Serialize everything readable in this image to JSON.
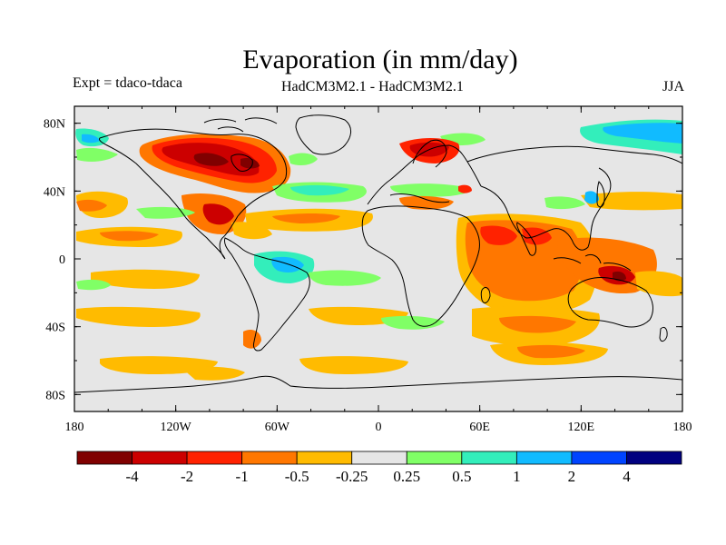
{
  "title": "Evaporation (in mm/day)",
  "subtitle_left": "Expt = tdaco-tdaca",
  "subtitle_center": "HadCM3M2.1 - HadCM3M2.1",
  "subtitle_right": "JJA",
  "map": {
    "lat_ticks": [
      "80N",
      "40N",
      "0",
      "40S",
      "80S"
    ],
    "lat_tick_values": [
      80,
      40,
      0,
      -40,
      -80
    ],
    "lon_ticks": [
      "180",
      "120W",
      "60W",
      "0",
      "60E",
      "120E",
      "180"
    ],
    "lon_tick_values": [
      -180,
      -120,
      -60,
      0,
      60,
      120,
      180
    ],
    "lon_range": [
      -180,
      180
    ],
    "lat_range": [
      -90,
      90
    ],
    "background_color": "#e6e6e6",
    "coastline_color": "#000000"
  },
  "colorbar": {
    "colors": [
      "#800000",
      "#cc0000",
      "#ff2200",
      "#ff7700",
      "#ffbb00",
      "#e6e6e6",
      "#80ff66",
      "#33eebb",
      "#11bbff",
      "#0044ff",
      "#000080"
    ],
    "labels": [
      "-4",
      "-2",
      "-1",
      "-0.5",
      "-0.25",
      "0.25",
      "0.5",
      "1",
      "2",
      "4"
    ]
  }
}
